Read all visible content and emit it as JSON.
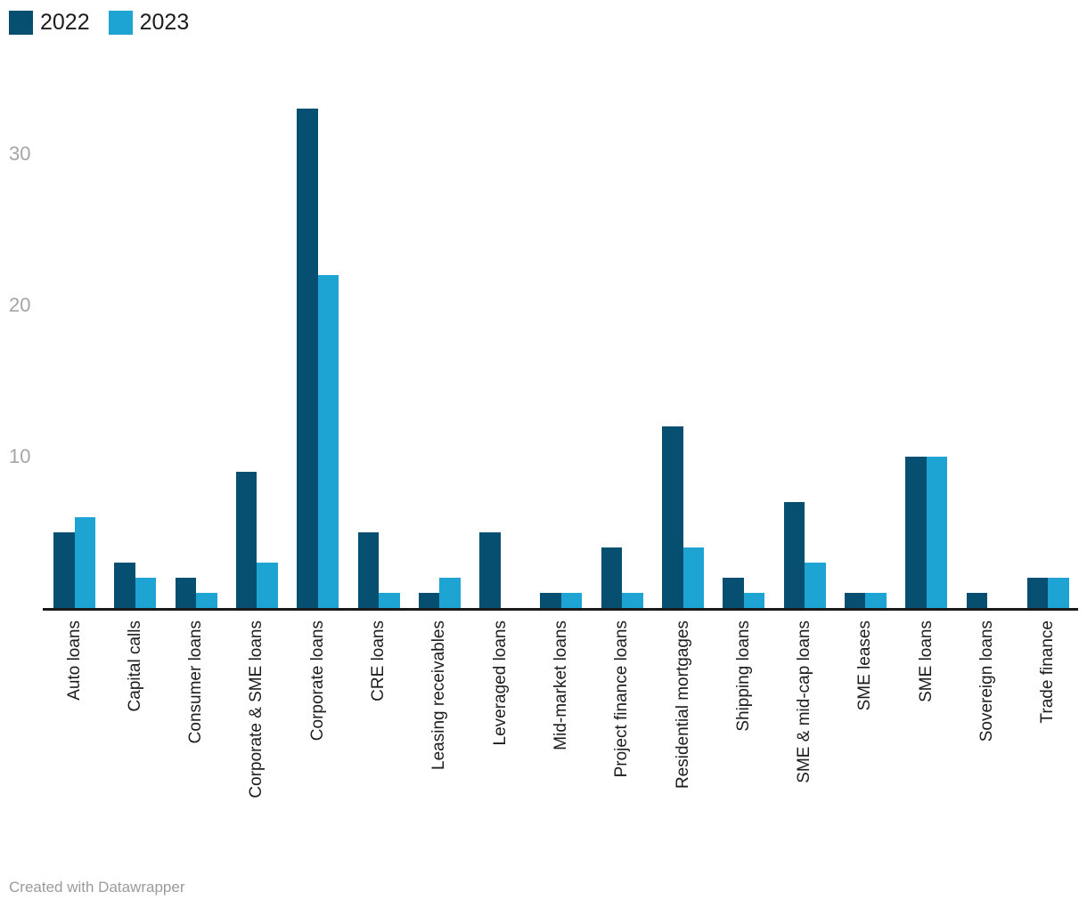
{
  "chart_data": {
    "type": "bar",
    "title": "",
    "categories": [
      "Auto loans",
      "Capital calls",
      "Consumer loans",
      "Corporate & SME loans",
      "Corporate loans",
      "CRE loans",
      "Leasing receivables",
      "Leveraged loans",
      "Mid-market loans",
      "Project finance loans",
      "Residential mortgages",
      "Shipping loans",
      "SME & mid-cap loans",
      "SME leases",
      "SME loans",
      "Sovereign loans",
      "Trade finance"
    ],
    "series": [
      {
        "name": "2022",
        "color": "#064f70",
        "values": [
          5,
          3,
          2,
          9,
          33,
          5,
          1,
          5,
          1,
          4,
          12,
          2,
          7,
          1,
          10,
          1,
          2
        ]
      },
      {
        "name": "2023",
        "color": "#1ea4d2",
        "values": [
          6,
          2,
          1,
          3,
          22,
          1,
          2,
          0,
          1,
          1,
          4,
          1,
          3,
          1,
          10,
          0,
          2
        ]
      }
    ],
    "xlabel": "",
    "ylabel": "",
    "y_ticks": [
      10,
      20,
      30
    ],
    "ylim": [
      0,
      35
    ],
    "grid": "off",
    "legend_position": "top-left",
    "x_label_rotation": "vertical-bottom-to-top"
  },
  "colors": {
    "series_2022": "#064f70",
    "series_2023": "#1ea4d2",
    "axis_line": "#1a1a1a",
    "tick_text": "#a5a5a5",
    "label_text": "#1d1d1d",
    "footer_text": "#9b9b9b",
    "background": "#ffffff"
  },
  "footer": {
    "credit": "Created with Datawrapper"
  }
}
